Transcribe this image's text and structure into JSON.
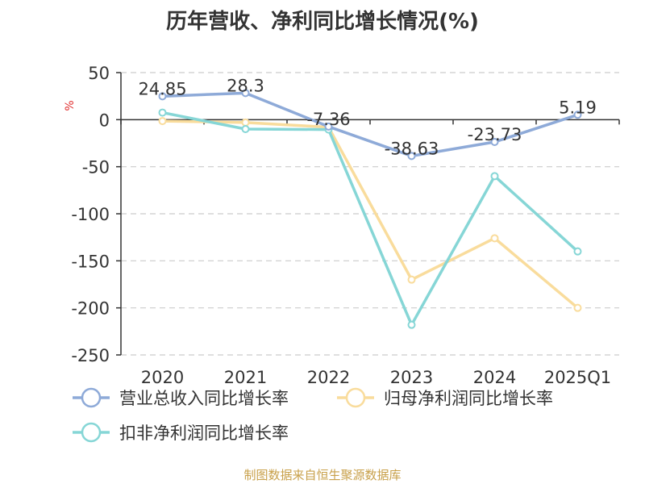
{
  "chart_data": {
    "type": "line",
    "title": "历年营收、净利同比增长情况(%)",
    "ylabel": "%",
    "categories": [
      "2020",
      "2021",
      "2022",
      "2023",
      "2024",
      "2025Q1"
    ],
    "ylim": [
      -250,
      50
    ],
    "yticks": [
      50,
      0,
      -50,
      -100,
      -150,
      -200,
      -250
    ],
    "grid": true,
    "legend_position": "bottom",
    "series": [
      {
        "name": "营业总收入同比增长率",
        "color": "#8eaad8",
        "values": [
          24.85,
          28.3,
          -7.36,
          -38.63,
          -23.73,
          5.19
        ],
        "data_labels": [
          "24.85",
          "28.3",
          "-7.36",
          "-38.63",
          "-23.73",
          "5.19"
        ]
      },
      {
        "name": "归母净利润同比增长率",
        "color": "#f9dc9c",
        "values": [
          -1.5,
          -3.0,
          -8.0,
          -170.0,
          -126.0,
          -200.0
        ]
      },
      {
        "name": "扣非净利润同比增长率",
        "color": "#86d6d6",
        "values": [
          7.5,
          -10.0,
          -10.5,
          -218.0,
          -60.0,
          -140.0
        ]
      }
    ]
  },
  "source": "制图数据来自恒生聚源数据库"
}
